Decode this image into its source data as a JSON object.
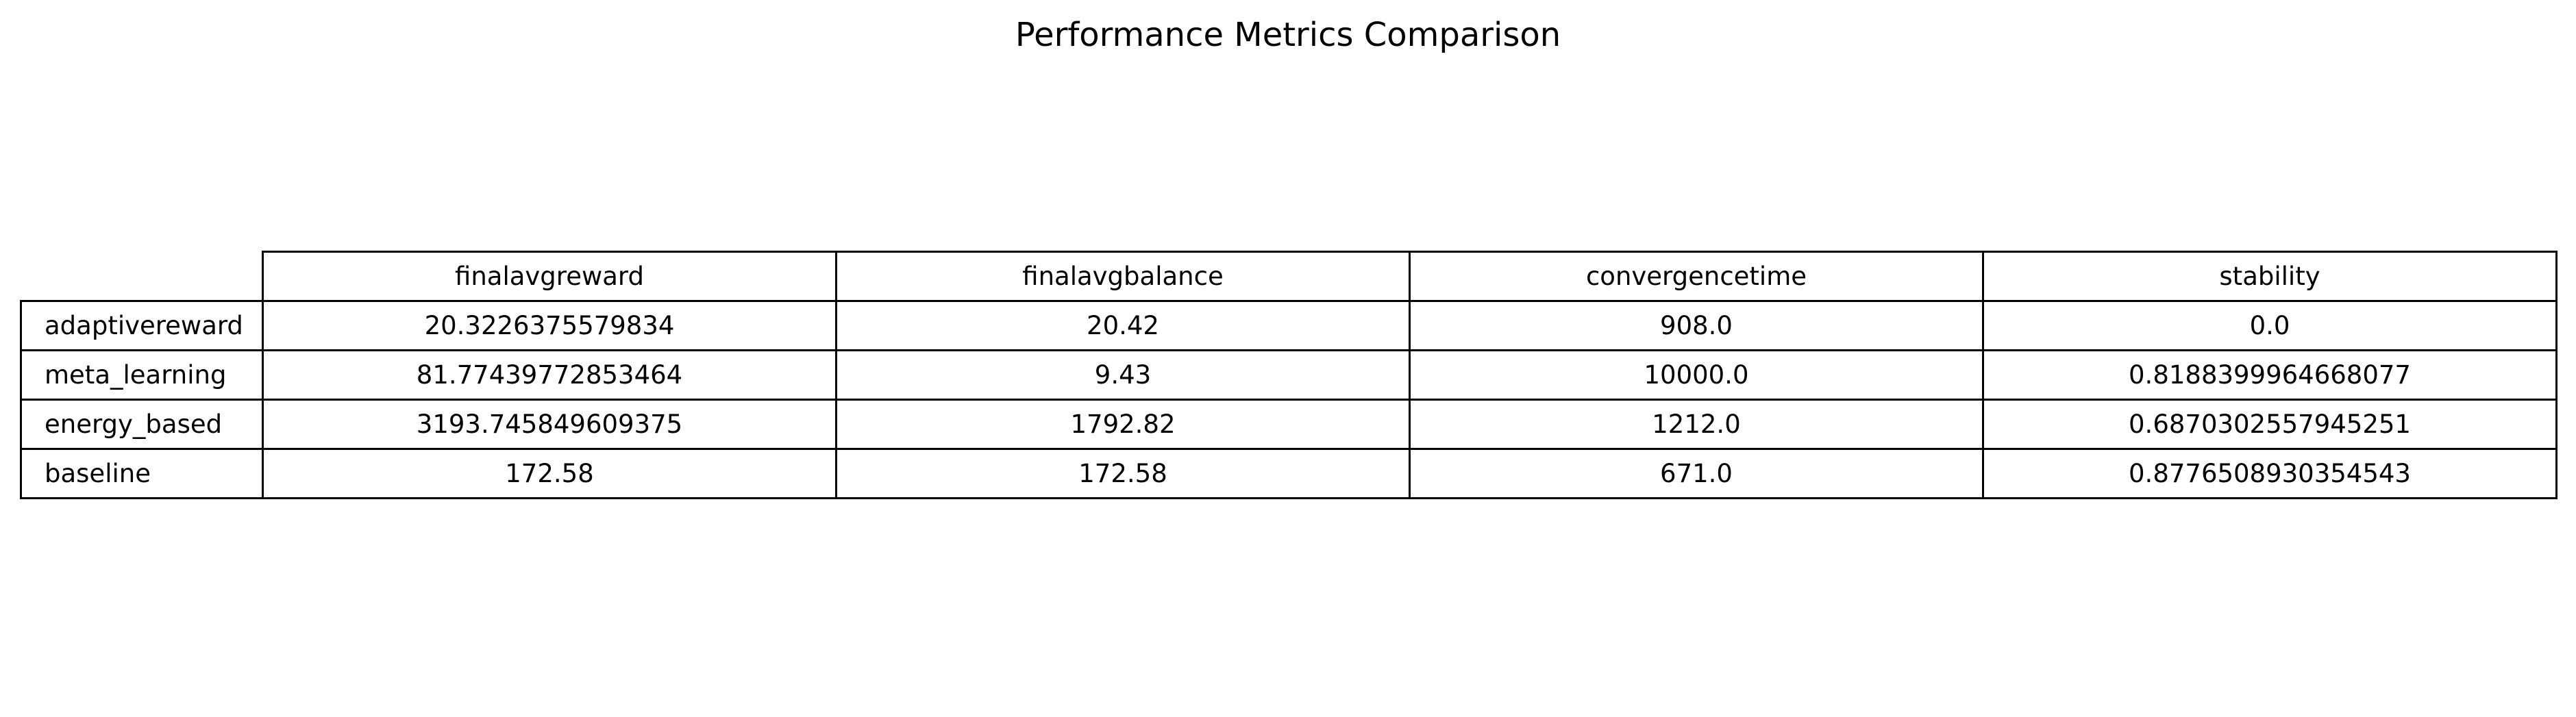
{
  "chart_data": {
    "type": "table",
    "title": "Performance Metrics Comparison",
    "columns": [
      "finalavgreward",
      "finalavgbalance",
      "convergencetime",
      "stability"
    ],
    "rows": [
      {
        "label": "adaptivereward",
        "values": [
          "20.3226375579834",
          "20.42",
          "908.0",
          "0.0"
        ]
      },
      {
        "label": "meta_learning",
        "values": [
          "81.77439772853464",
          "9.43",
          "10000.0",
          "0.8188399964668077"
        ]
      },
      {
        "label": "energy_based",
        "values": [
          "3193.745849609375",
          "1792.82",
          "1212.0",
          "0.6870302557945251"
        ]
      },
      {
        "label": "baseline",
        "values": [
          "172.58",
          "172.58",
          "671.0",
          "0.8776508930354543"
        ]
      }
    ],
    "colors": {
      "border": "#000000",
      "background": "#ffffff",
      "text": "#000000"
    }
  }
}
